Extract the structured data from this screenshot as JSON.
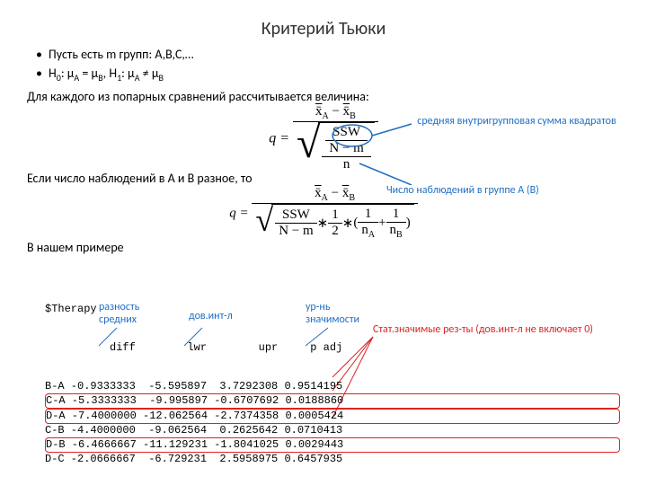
{
  "title": "Критерий Тьюки",
  "bullet1": "Пусть есть m групп: A,B,C,…",
  "bullet2_pre": "H",
  "bullet2_a": ": µ",
  "bullet2_eq": " = µ",
  "bullet2_h1": ", H",
  "bullet2_b": ": µ",
  "bullet2_ne": " ≠ µ",
  "para1": "Для каждого из попарных сравнений рассчитывается величина:",
  "para2": "Если число наблюдений в A и B разное, то",
  "para3": "В нашем примере",
  "annot_ssw": "средняя  внутригрупповая сумма квадратов",
  "annot_n": "Число наблюдений в группе A (B)",
  "col_diff": "разность средних",
  "col_lwr": "дов.инт-л",
  "col_padj": "ур-нь значимости",
  "annot_sig": "Стат.значимые рез-ты (дов.инт-л не включает 0)",
  "eq": {
    "q": "q = ",
    "xaxb": "x̄",
    "A": "A",
    "B": "B",
    "minus": " − ",
    "SSW": "SSW",
    "Nm": "N − m",
    "n": "n",
    "half": "1",
    "two": "2",
    "star": " ∗ ",
    "lpar": "(",
    "rpar": ")",
    "plus": " + ",
    "nA": "n",
    "nB": "n"
  },
  "table": {
    "header0": "$Therapy",
    "header1": "          diff        lwr        upr     p adj",
    "rows": [
      "B-A -0.9333333  -5.595897  3.7292308 0.9514195",
      "C-A -5.3333333  -9.995897 -0.6707692 0.0188860",
      "D-A -7.4000000 -12.062564 -2.7374358 0.0005424",
      "C-B -4.4000000  -9.062564  0.2625642 0.0710413",
      "D-B -6.4666667 -11.129231 -1.8041025 0.0029443",
      "D-C -2.0666667  -6.729231  2.5958975 0.6457935"
    ],
    "highlight_rows": [
      1,
      2,
      4
    ]
  }
}
